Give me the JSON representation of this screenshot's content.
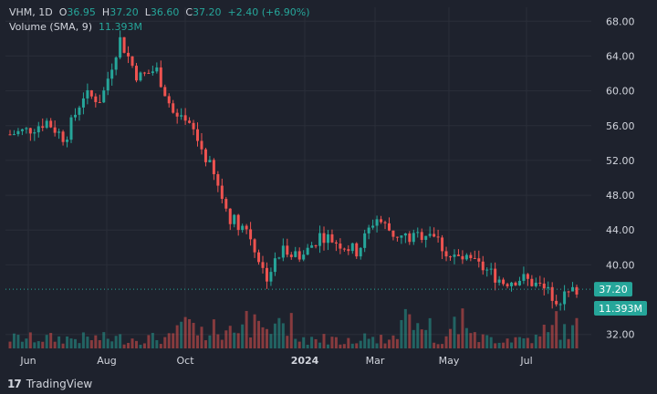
{
  "colors": {
    "background": "#1e222d",
    "grid": "#2a2e39",
    "text": "#d1d4dc",
    "up": "#26a69a",
    "down": "#ef5350",
    "price_tag": "#26a69a"
  },
  "legend": {
    "symbol": "VHM, 1D",
    "open_label": "O",
    "open": "36.95",
    "high_label": "H",
    "high": "37.20",
    "low_label": "L",
    "low": "36.60",
    "close_label": "C",
    "close": "37.20",
    "change": "+2.40 (+6.90%)",
    "volume_label": "Volume (SMA, 9)",
    "volume_value": "11.393M"
  },
  "price_tag": "37.20",
  "volume_tag": "11.393M",
  "brand": {
    "logo": "17",
    "name": "TradingView"
  },
  "chart_data": {
    "type": "candlestick",
    "symbol": "VHM",
    "interval": "1D",
    "ylim": [
      30.4,
      69.6
    ],
    "y_ticks": [
      "68.00",
      "64.00",
      "60.00",
      "56.00",
      "52.00",
      "48.00",
      "44.00",
      "40.00",
      "32.00"
    ],
    "x_ticks": [
      "Jun",
      "Aug",
      "Oct",
      "2024",
      "Mar",
      "May",
      "Jul"
    ],
    "close_series": [
      {
        "x": "Jun 1",
        "y": 55.0
      },
      {
        "x": "Jun 15",
        "y": 55.5
      },
      {
        "x": "Jul 1",
        "y": 56.5
      },
      {
        "x": "Jul 15",
        "y": 54.5
      },
      {
        "x": "Jul 25",
        "y": 59.5
      },
      {
        "x": "Aug 1",
        "y": 59.0
      },
      {
        "x": "Aug 5",
        "y": 66.0
      },
      {
        "x": "Aug 15",
        "y": 61.5
      },
      {
        "x": "Aug 25",
        "y": 62.5
      },
      {
        "x": "Sep 1",
        "y": 57.0
      },
      {
        "x": "Sep 15",
        "y": 55.5
      },
      {
        "x": "Oct 1",
        "y": 51.0
      },
      {
        "x": "Oct 15",
        "y": 45.5
      },
      {
        "x": "Nov 1",
        "y": 44.0
      },
      {
        "x": "Nov 15",
        "y": 38.5
      },
      {
        "x": "Dec 1",
        "y": 42.0
      },
      {
        "x": "Dec 15",
        "y": 41.0
      },
      {
        "x": "Jan 1",
        "y": 43.5
      },
      {
        "x": "Jan 15",
        "y": 42.5
      },
      {
        "x": "Feb 1",
        "y": 41.5
      },
      {
        "x": "Feb 15",
        "y": 45.5
      },
      {
        "x": "Mar 1",
        "y": 43.5
      },
      {
        "x": "Mar 15",
        "y": 43.0
      },
      {
        "x": "Apr 1",
        "y": 44.0
      },
      {
        "x": "Apr 15",
        "y": 41.0
      },
      {
        "x": "May 1",
        "y": 40.5
      },
      {
        "x": "May 15",
        "y": 39.5
      },
      {
        "x": "Jun 1",
        "y": 38.0
      },
      {
        "x": "Jun 15",
        "y": 38.5
      },
      {
        "x": "Jul 1",
        "y": 37.5
      },
      {
        "x": "Jul 15",
        "y": 36.0
      },
      {
        "x": "Jul 25",
        "y": 37.2
      }
    ]
  }
}
